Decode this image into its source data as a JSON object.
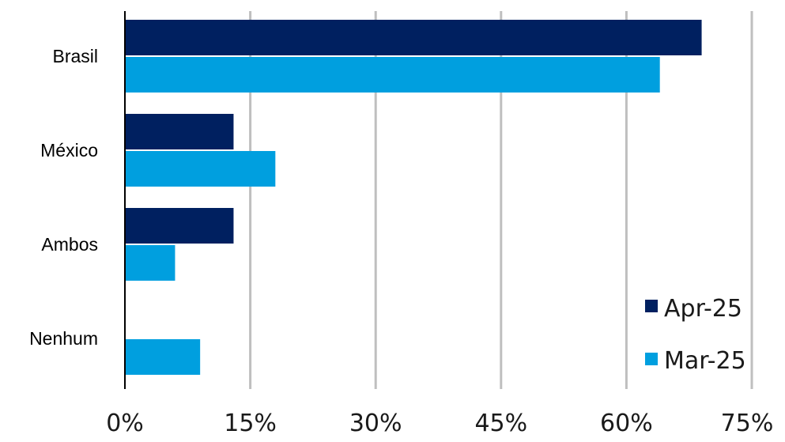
{
  "chart_data": {
    "type": "bar",
    "orientation": "horizontal",
    "categories": [
      "Brasil",
      "México",
      "Ambos",
      "Nenhum"
    ],
    "series": [
      {
        "name": "Apr-25",
        "color": "#002060",
        "values": [
          69,
          13,
          13,
          0
        ]
      },
      {
        "name": "Mar-25",
        "color": "#009FDF",
        "values": [
          64,
          18,
          6,
          9
        ]
      }
    ],
    "xlim": [
      0,
      75
    ],
    "xticks": [
      0,
      15,
      30,
      45,
      60,
      75
    ],
    "xtick_labels": [
      "0%",
      "15%",
      "30%",
      "45%",
      "60%",
      "75%"
    ],
    "grid": "vertical",
    "grid_color": "#bfbfbf",
    "legend_position": "bottom-right",
    "title": "",
    "xlabel": "",
    "ylabel": ""
  }
}
